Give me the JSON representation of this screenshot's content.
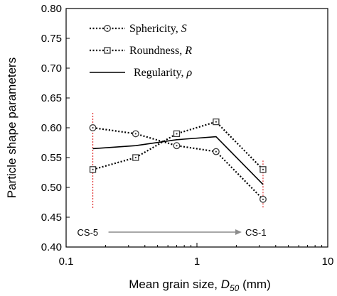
{
  "chart_data": {
    "type": "line",
    "xscale": "log",
    "xlim": [
      0.1,
      10
    ],
    "ylim": [
      0.4,
      0.8
    ],
    "x_ticks": [
      "0.1",
      "1",
      "10"
    ],
    "y_ticks": [
      "0.40",
      "0.45",
      "0.50",
      "0.55",
      "0.60",
      "0.65",
      "0.70",
      "0.75",
      "0.80"
    ],
    "xlabel_prefix": "Mean grain size, ",
    "xlabel_symbol": "D",
    "xlabel_sub": "50",
    "xlabel_suffix": " (mm)",
    "ylabel": "Particle shape parameters",
    "grid": false,
    "legend_position": "top-center",
    "x": [
      0.16,
      0.34,
      0.7,
      1.4,
      3.2
    ],
    "series": [
      {
        "name": "Sphericity, S",
        "label_text": "Sphericity, ",
        "label_symbol": "S",
        "marker": "circle",
        "style": "dotted",
        "values": [
          0.6,
          0.59,
          0.57,
          0.56,
          0.48
        ]
      },
      {
        "name": "Roundness, R",
        "label_text": "Roundness, ",
        "label_symbol": "R",
        "marker": "square",
        "style": "dotted",
        "values": [
          0.53,
          0.55,
          0.59,
          0.61,
          0.53
        ]
      },
      {
        "name": "Regularity, ρ",
        "label_text": "Regularity, ",
        "label_symbol": "ρ",
        "marker": "none",
        "style": "solid",
        "values": [
          0.565,
          0.57,
          0.58,
          0.585,
          0.505
        ]
      }
    ],
    "annotations": {
      "start_label": "CS-5",
      "end_label": "CS-1",
      "start_x": 0.16,
      "end_x": 3.2,
      "vline_ymin": 0.465,
      "vline_ymax": 0.625,
      "end_vline_ymax": 0.545,
      "arrow_y": 0.425
    },
    "colors": {
      "series_line": "#000000",
      "marker_edge": "#3a3a3a",
      "marker_fill": "#ffffff",
      "vline": "#e03030",
      "arrow": "#8c8c8c"
    }
  }
}
